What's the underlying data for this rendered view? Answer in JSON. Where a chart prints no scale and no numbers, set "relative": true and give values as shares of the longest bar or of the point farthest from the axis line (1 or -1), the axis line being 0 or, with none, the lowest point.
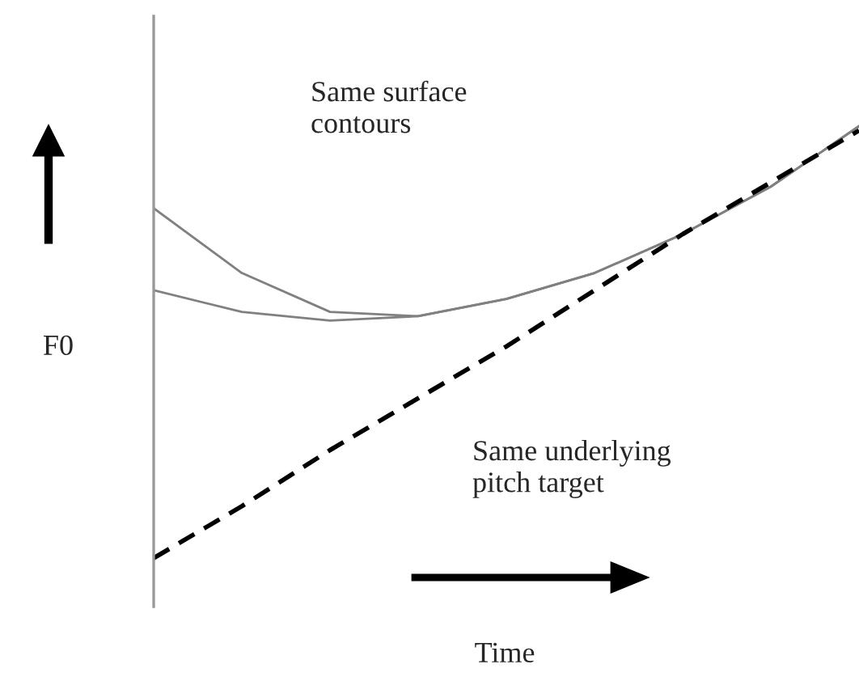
{
  "chart_data": {
    "type": "line",
    "relative": true,
    "xlabel": "Time",
    "ylabel": "F0",
    "categories": [
      null,
      null,
      null,
      null,
      null,
      null,
      null,
      null,
      null
    ],
    "series": [
      {
        "color": "#808080",
        "line_style": "solid",
        "values": [
          0.81,
          0.66,
          0.57,
          0.56,
          0.6,
          0.66,
          0.75,
          0.86,
          1
        ]
      },
      {
        "color": "#808080",
        "line_style": "solid",
        "values": [
          0.62,
          0.57,
          0.55,
          0.56,
          0.6,
          0.66,
          0.75,
          0.86,
          1
        ]
      },
      {
        "color": "#000000",
        "line_style": "dashed",
        "values": [
          0,
          0.12,
          0.25,
          0.37,
          0.49,
          0.62,
          0.75,
          0.87,
          0.99
        ]
      }
    ],
    "annotations": [
      "Same surface contours",
      "Same underlying pitch target"
    ],
    "legend": false,
    "marker": "none"
  }
}
